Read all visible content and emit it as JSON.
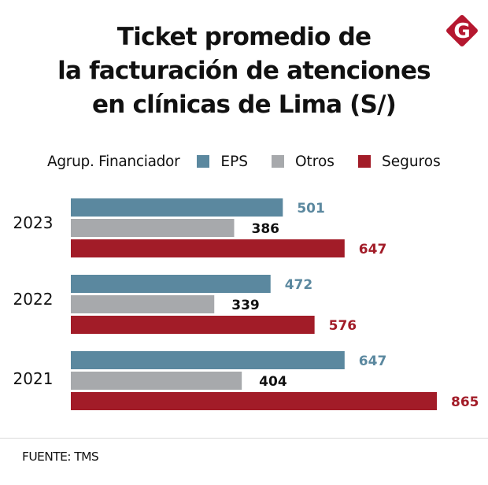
{
  "header": {
    "title_lines": [
      "Ticket promedio de",
      "la facturación de atenciones",
      "en clínicas de Lima (S/)"
    ],
    "logo_letter": "G",
    "logo_color": "#b5172f"
  },
  "legend": {
    "title": "Agrup. Financiador",
    "items": [
      {
        "label": "EPS",
        "color": "#5b889f"
      },
      {
        "label": "Otros",
        "color": "#a7a9ac"
      },
      {
        "label": "Seguros",
        "color": "#a21c28"
      }
    ]
  },
  "footer": {
    "source": "FUENTE: TMS"
  },
  "chart_data": {
    "type": "bar",
    "orientation": "horizontal",
    "title": "Ticket promedio de la facturación de atenciones en clínicas de Lima (S/)",
    "xlabel": "",
    "ylabel": "",
    "categories": [
      "2023",
      "2022",
      "2021"
    ],
    "series": [
      {
        "name": "EPS",
        "color": "#5b889f",
        "label_color": "#5b889f",
        "values": [
          501,
          472,
          647
        ]
      },
      {
        "name": "Otros",
        "color": "#a7a9ac",
        "label_color": "#111111",
        "values": [
          386,
          339,
          404
        ]
      },
      {
        "name": "Seguros",
        "color": "#a21c28",
        "label_color": "#a21c28",
        "values": [
          647,
          576,
          865
        ]
      }
    ],
    "xlim": [
      0,
      865
    ],
    "grid": false,
    "legend_position": "top",
    "data_labels": true,
    "source": "FUENTE: TMS"
  }
}
